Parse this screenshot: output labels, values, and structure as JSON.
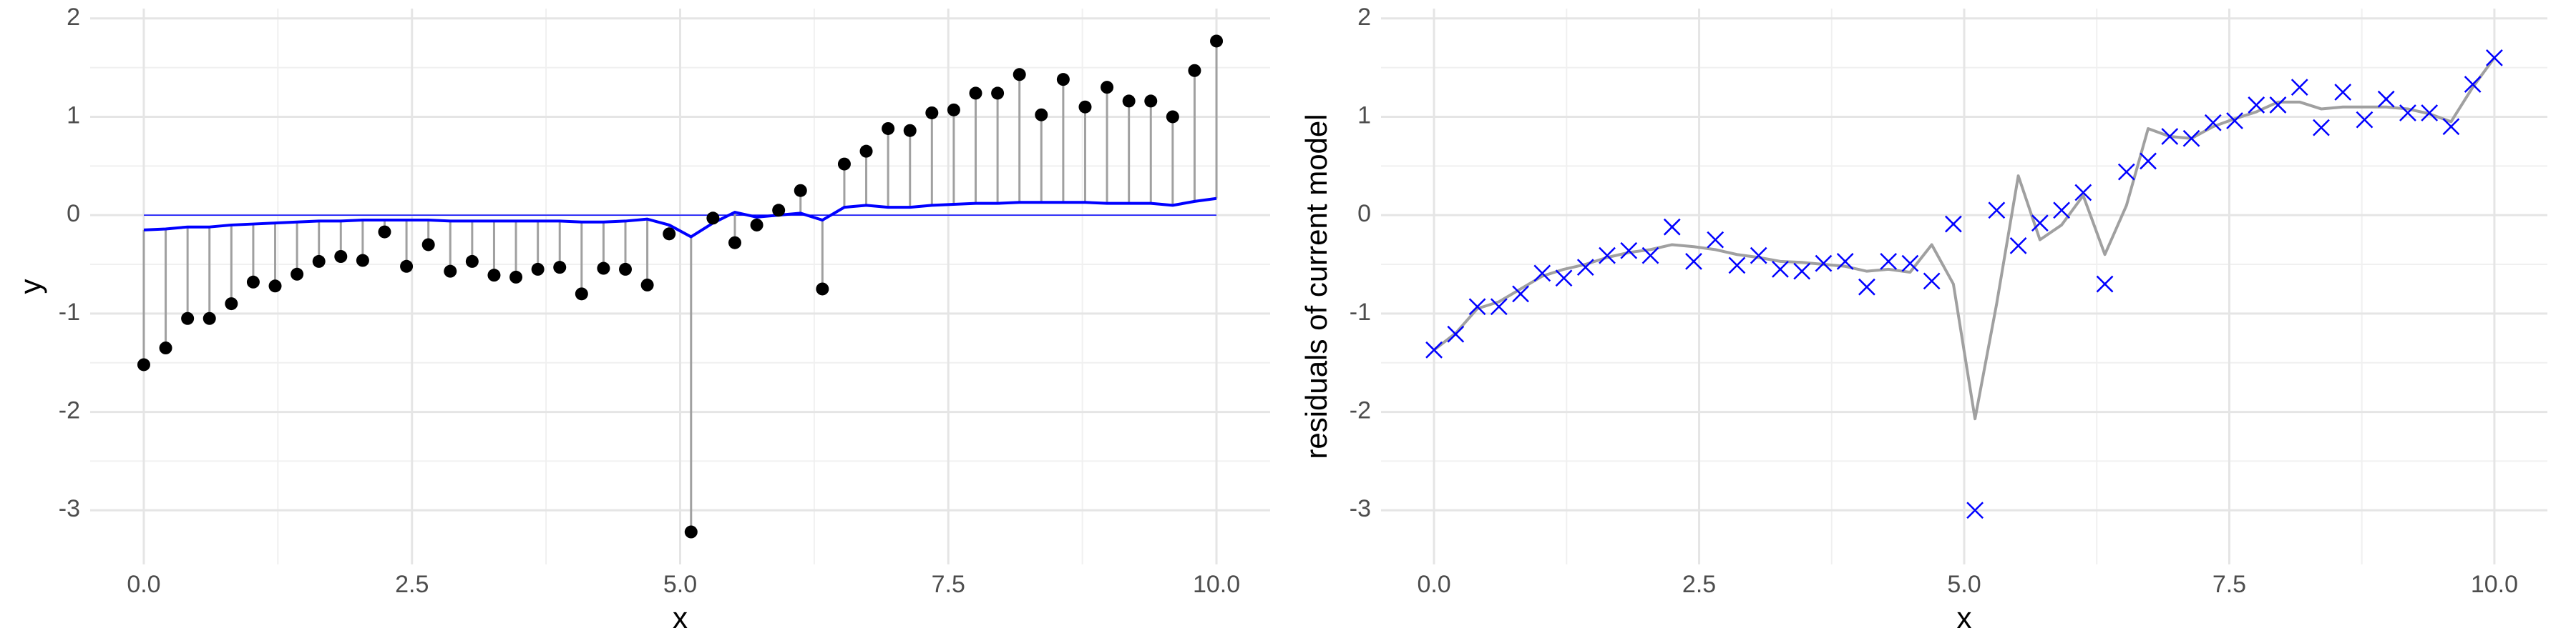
{
  "chart_data": [
    {
      "type": "stem",
      "x_label": "x",
      "y_label": "y",
      "x": [
        0,
        0.2041,
        0.4082,
        0.6122,
        0.8163,
        1.0204,
        1.2245,
        1.4286,
        1.6327,
        1.8367,
        2.0408,
        2.2449,
        2.449,
        2.6531,
        2.8571,
        3.0612,
        3.2653,
        3.4694,
        3.6735,
        3.8776,
        4.0816,
        4.2857,
        4.4898,
        4.6939,
        4.898,
        5.102,
        5.3061,
        5.5102,
        5.7143,
        5.9184,
        6.1224,
        6.3265,
        6.5306,
        6.7347,
        6.9388,
        7.1429,
        7.3469,
        7.551,
        7.7551,
        7.9592,
        8.1633,
        8.3673,
        8.5714,
        8.7755,
        8.9796,
        9.1837,
        9.3878,
        9.5918,
        9.7959,
        10
      ],
      "values": [
        -1.52,
        -1.35,
        -1.05,
        -1.05,
        -0.9,
        -0.68,
        -0.72,
        -0.6,
        -0.47,
        -0.42,
        -0.46,
        -0.17,
        -0.52,
        -0.3,
        -0.57,
        -0.47,
        -0.61,
        -0.63,
        -0.55,
        -0.53,
        -0.8,
        -0.54,
        -0.55,
        -0.71,
        -0.19,
        -3.22,
        -0.03,
        -0.28,
        -0.1,
        0.05,
        0.25,
        -0.75,
        0.52,
        0.65,
        0.88,
        0.86,
        1.04,
        1.07,
        1.24,
        1.24,
        1.43,
        1.02,
        1.38,
        1.1,
        1.3,
        1.16,
        1.16,
        1.0,
        1.47,
        1.77
      ],
      "fitted": [
        -0.15,
        -0.14,
        -0.12,
        -0.12,
        -0.1,
        -0.09,
        -0.08,
        -0.07,
        -0.06,
        -0.06,
        -0.05,
        -0.05,
        -0.05,
        -0.05,
        -0.06,
        -0.06,
        -0.06,
        -0.06,
        -0.06,
        -0.06,
        -0.07,
        -0.07,
        -0.06,
        -0.04,
        -0.1,
        -0.22,
        -0.08,
        0.03,
        -0.02,
        0.0,
        0.02,
        -0.05,
        0.08,
        0.1,
        0.08,
        0.08,
        0.1,
        0.11,
        0.12,
        0.12,
        0.13,
        0.13,
        0.13,
        0.13,
        0.12,
        0.12,
        0.12,
        0.1,
        0.14,
        0.17
      ],
      "baseline": 0,
      "point_color": "#000000",
      "fit_color": "#0000ff",
      "stem_color": "#a0a0a0",
      "xlim": [
        -0.5,
        10.5
      ],
      "ylim": [
        -3.55,
        2.1
      ],
      "xticks": [
        {
          "value": 0,
          "label": "0.0"
        },
        2.5,
        {
          "value": 5,
          "label": "5.0"
        },
        7.5,
        {
          "value": 10,
          "label": "10.0"
        }
      ],
      "yticks": [
        -3,
        -2,
        -1,
        0,
        1,
        2
      ],
      "x_minor_grid": [
        1.25,
        3.75,
        6.25,
        8.75
      ],
      "y_minor_grid": [
        -2.5,
        -1.5,
        -0.5,
        0.5,
        1.5
      ],
      "grid": true
    },
    {
      "type": "scatter",
      "x_label": "x",
      "y_label": "residuals of current model",
      "x": [
        0,
        0.2041,
        0.4082,
        0.6122,
        0.8163,
        1.0204,
        1.2245,
        1.4286,
        1.6327,
        1.8367,
        2.0408,
        2.2449,
        2.449,
        2.6531,
        2.8571,
        3.0612,
        3.2653,
        3.4694,
        3.6735,
        3.8776,
        4.0816,
        4.2857,
        4.4898,
        4.6939,
        4.898,
        5.102,
        5.3061,
        5.5102,
        5.7143,
        5.9184,
        6.1224,
        6.3265,
        6.5306,
        6.7347,
        6.9388,
        7.1429,
        7.3469,
        7.551,
        7.7551,
        7.9592,
        8.1633,
        8.3673,
        8.5714,
        8.7755,
        8.9796,
        9.1837,
        9.3878,
        9.5918,
        9.7959,
        10
      ],
      "values": [
        -1.37,
        -1.21,
        -0.93,
        -0.93,
        -0.8,
        -0.59,
        -0.64,
        -0.53,
        -0.41,
        -0.36,
        -0.41,
        -0.12,
        -0.47,
        -0.25,
        -0.51,
        -0.41,
        -0.55,
        -0.57,
        -0.49,
        -0.47,
        -0.73,
        -0.47,
        -0.49,
        -0.67,
        -0.09,
        -3.0,
        0.05,
        -0.31,
        -0.08,
        0.05,
        0.23,
        -0.7,
        0.44,
        0.55,
        0.8,
        0.78,
        0.94,
        0.96,
        1.12,
        1.12,
        1.3,
        0.89,
        1.25,
        0.97,
        1.18,
        1.04,
        1.04,
        0.9,
        1.33,
        1.6
      ],
      "fitted": [
        -1.37,
        -1.2,
        -0.95,
        -0.88,
        -0.75,
        -0.62,
        -0.55,
        -0.5,
        -0.43,
        -0.38,
        -0.35,
        -0.3,
        -0.32,
        -0.35,
        -0.4,
        -0.43,
        -0.47,
        -0.48,
        -0.5,
        -0.52,
        -0.57,
        -0.55,
        -0.58,
        -0.3,
        -0.7,
        -2.07,
        -0.9,
        0.4,
        -0.25,
        -0.1,
        0.2,
        -0.4,
        0.1,
        0.88,
        0.8,
        0.78,
        0.9,
        0.98,
        1.05,
        1.15,
        1.15,
        1.08,
        1.1,
        1.1,
        1.1,
        1.08,
        1.03,
        0.95,
        1.3,
        1.6
      ],
      "point_color": "#0000ff",
      "fit_color": "#a0a0a0",
      "xlim": [
        -0.5,
        10.5
      ],
      "ylim": [
        -3.55,
        2.1
      ],
      "xticks": [
        {
          "value": 0,
          "label": "0.0"
        },
        2.5,
        {
          "value": 5,
          "label": "5.0"
        },
        7.5,
        {
          "value": 10,
          "label": "10.0"
        }
      ],
      "yticks": [
        -3,
        -2,
        -1,
        0,
        1,
        2
      ],
      "x_minor_grid": [
        1.25,
        3.75,
        6.25,
        8.75
      ],
      "y_minor_grid": [
        -2.5,
        -1.5,
        -0.5,
        0.5,
        1.5
      ],
      "grid": true
    }
  ]
}
